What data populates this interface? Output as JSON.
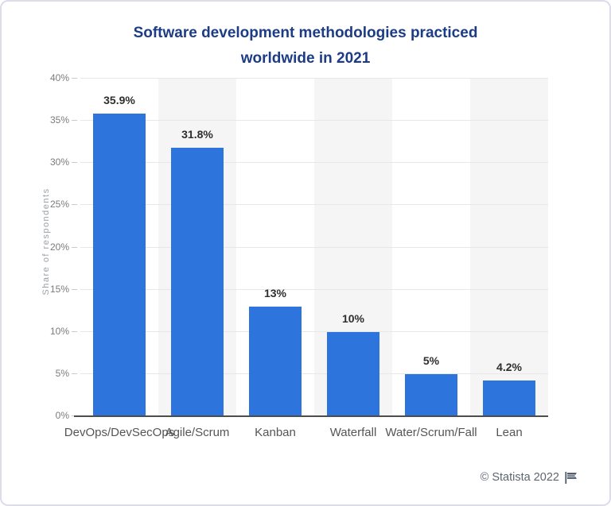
{
  "title": {
    "line1": "Software development methodologies practiced",
    "line2": "worldwide in 2021"
  },
  "footer": {
    "text": "© Statista 2022"
  },
  "colors": {
    "bar": "#2e74dd",
    "title": "#1c3c85",
    "band": "#f5f5f6",
    "gridline": "#e7e7e7",
    "baseline": "#4d4d4d"
  },
  "chart_data": {
    "type": "bar",
    "title": "Software development methodologies practiced worldwide in 2021",
    "categories": [
      "DevOps/DevSecOps",
      "Agile/Scrum",
      "Kanban",
      "Waterfall",
      "Water/Scrum/Fall",
      "Lean"
    ],
    "values": [
      35.9,
      31.8,
      13,
      10,
      5,
      4.2
    ],
    "value_labels": [
      "35.9%",
      "31.8%",
      "13%",
      "10%",
      "5%",
      "4.2%"
    ],
    "xlabel": "",
    "ylabel": "Share of respondents",
    "ylim": [
      0,
      40
    ],
    "ytick_step": 5,
    "ytick_labels": [
      "0%",
      "5%",
      "10%",
      "15%",
      "20%",
      "25%",
      "30%",
      "35%",
      "40%"
    ],
    "grid": true,
    "legend": false,
    "bar_color": "#2e74dd"
  }
}
